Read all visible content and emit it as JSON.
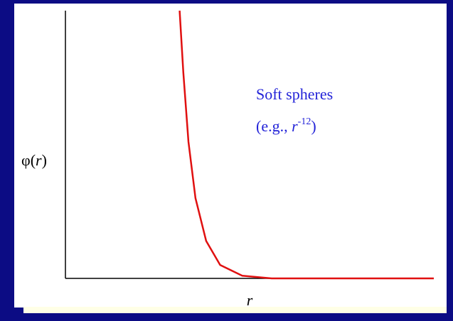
{
  "chart_data": {
    "type": "line",
    "xlabel": "r",
    "ylabel": [
      "φ(",
      "r",
      ")"
    ],
    "annotation": {
      "line1": "Soft spheres",
      "line2": [
        "(e.g., ",
        "r",
        "-12",
        ")"
      ]
    },
    "x": [
      31,
      32,
      33.4,
      35.3,
      38.2,
      42,
      48,
      56,
      100
    ],
    "series": [
      {
        "name": "Soft spheres",
        "color": "#e01010",
        "values": [
          100,
          77,
          51,
          30,
          14,
          5,
          1,
          0,
          0
        ]
      }
    ],
    "xlim": [
      0,
      100
    ],
    "ylim": [
      0,
      100
    ]
  }
}
